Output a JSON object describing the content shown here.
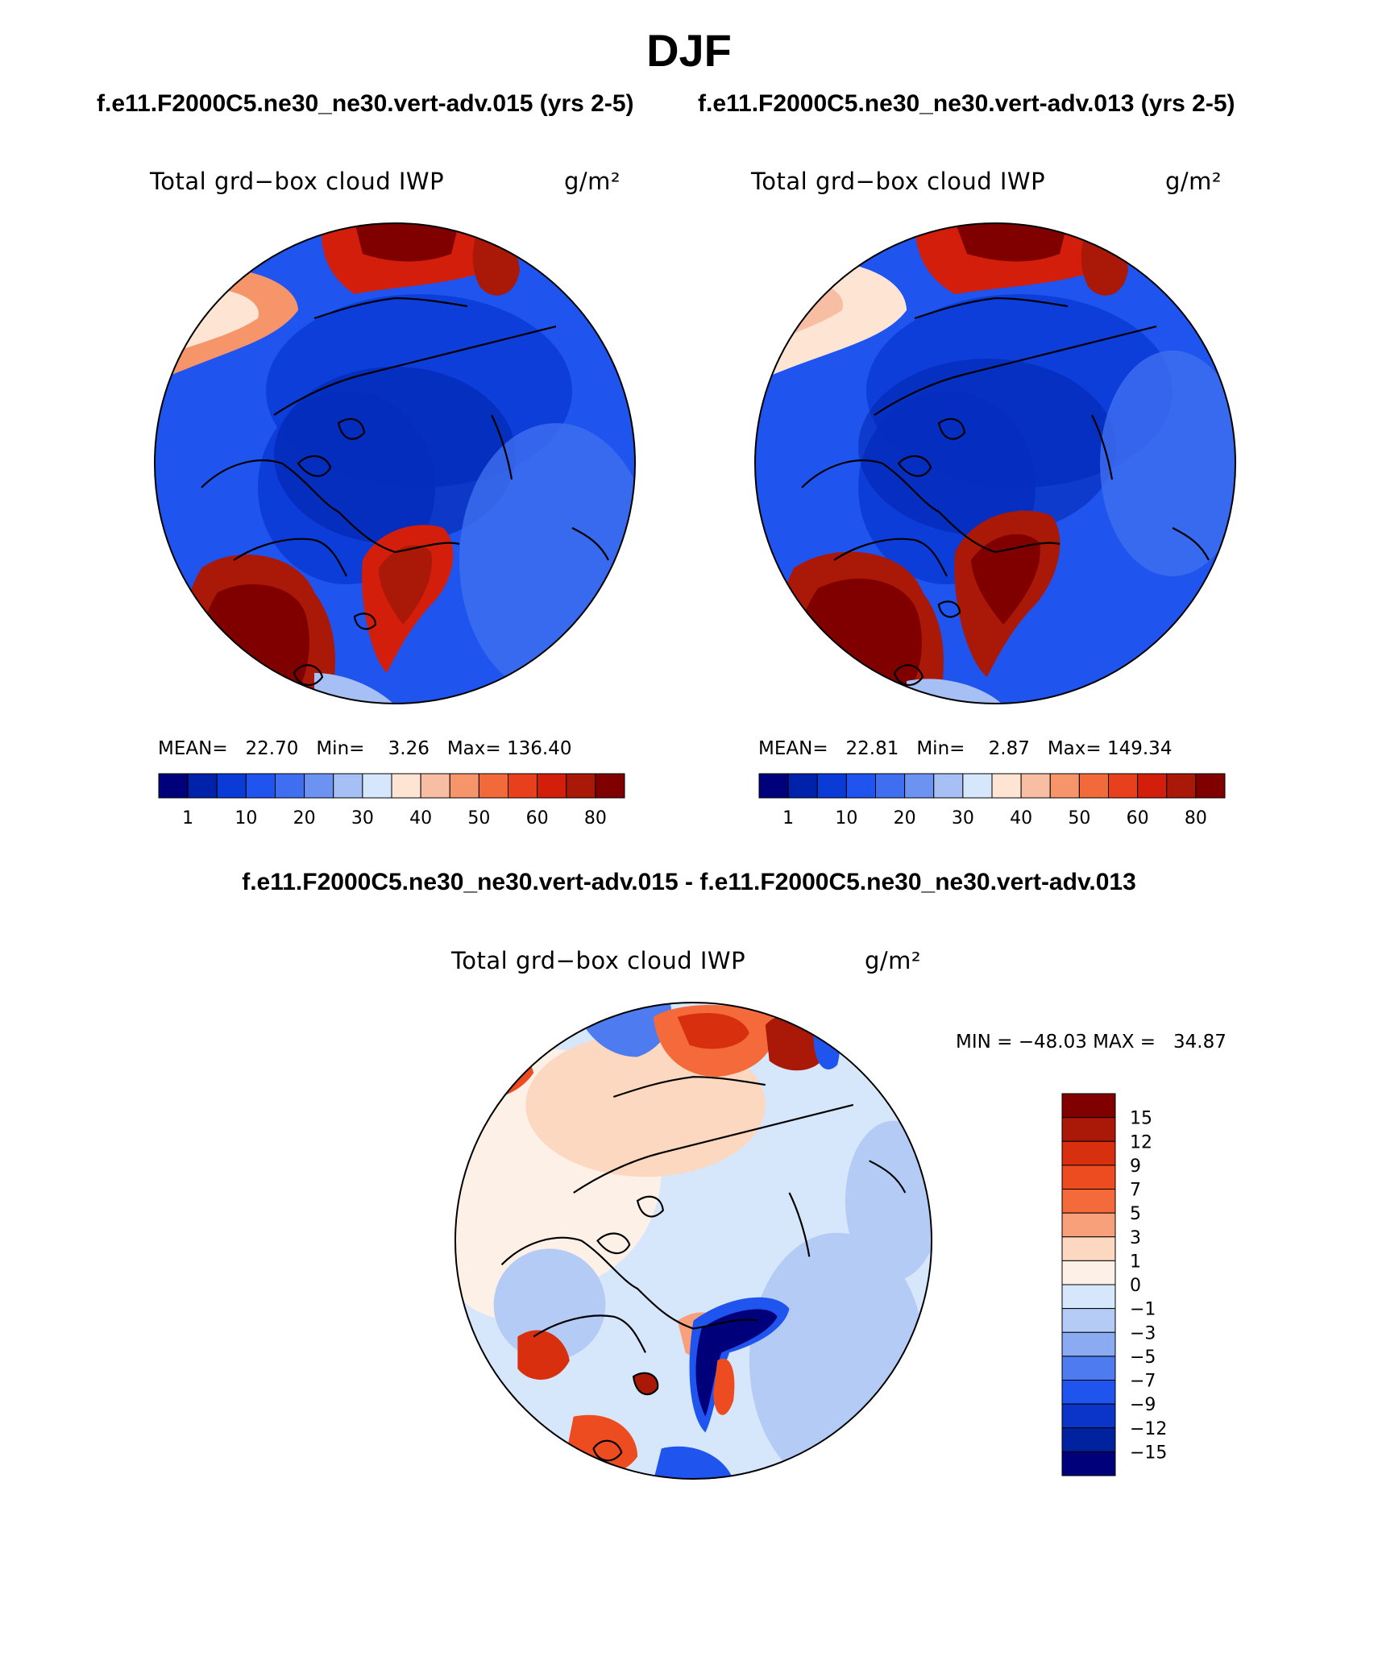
{
  "season": "DJF",
  "panels": [
    {
      "case": "f.e11.F2000C5.ne30_ne30.vert-adv.015 (yrs 2-5)",
      "variable": "Total grd−box cloud IWP",
      "units": "g/m²",
      "stats": {
        "mean_label": "MEAN=",
        "mean": "22.70",
        "min_label": "Min=",
        "min": "3.26",
        "max_label": "Max=",
        "max": "136.40"
      }
    },
    {
      "case": "f.e11.F2000C5.ne30_ne30.vert-adv.013 (yrs 2-5)",
      "variable": "Total grd−box cloud IWP",
      "units": "g/m²",
      "stats": {
        "mean_label": "MEAN=",
        "mean": "22.81",
        "min_label": "Min=",
        "min": "2.87",
        "max_label": "Max=",
        "max": "149.34"
      }
    }
  ],
  "difference": {
    "title": "f.e11.F2000C5.ne30_ne30.vert-adv.015 - f.e11.F2000C5.ne30_ne30.vert-adv.013",
    "variable": "Total grd−box cloud IWP",
    "units": "g/m²",
    "minmax": "MIN = −48.03 MAX =   34.87"
  },
  "chart_data": [
    {
      "type": "heatmap",
      "projection": "north-polar-stereographic",
      "field": "Total grd-box cloud IWP",
      "units": "g/m2",
      "colorbar": {
        "orientation": "horizontal",
        "tick_labels": [
          "1",
          "10",
          "20",
          "30",
          "40",
          "50",
          "60",
          "80"
        ],
        "colors": [
          "#00007a",
          "#0022aa",
          "#0a3bd6",
          "#1f55ee",
          "#3f6ff0",
          "#6d93f2",
          "#a6bff5",
          "#d6e6fb",
          "#fde4d3",
          "#f7bea3",
          "#f6946a",
          "#f26a3a",
          "#e8401c",
          "#d21e0a",
          "#aa1808",
          "#800000"
        ]
      },
      "mean": 22.7,
      "min": 3.26,
      "max": 136.4
    },
    {
      "type": "heatmap",
      "projection": "north-polar-stereographic",
      "field": "Total grd-box cloud IWP",
      "units": "g/m2",
      "colorbar": {
        "orientation": "horizontal",
        "tick_labels": [
          "1",
          "10",
          "20",
          "30",
          "40",
          "50",
          "60",
          "80"
        ],
        "colors": [
          "#00007a",
          "#0022aa",
          "#0a3bd6",
          "#1f55ee",
          "#3f6ff0",
          "#6d93f2",
          "#a6bff5",
          "#d6e6fb",
          "#fde4d3",
          "#f7bea3",
          "#f6946a",
          "#f26a3a",
          "#e8401c",
          "#d21e0a",
          "#aa1808",
          "#800000"
        ]
      },
      "mean": 22.81,
      "min": 2.87,
      "max": 149.34
    },
    {
      "type": "heatmap",
      "projection": "north-polar-stereographic",
      "field": "Total grd-box cloud IWP difference",
      "units": "g/m2",
      "colorbar": {
        "orientation": "vertical",
        "tick_labels": [
          "15",
          "12",
          "9",
          "7",
          "5",
          "3",
          "1",
          "0",
          "−1",
          "−3",
          "−5",
          "−7",
          "−9",
          "−12",
          "−15"
        ],
        "colors": [
          "#800000",
          "#aa1808",
          "#d8300e",
          "#ec4c1f",
          "#f46a3a",
          "#f7a07a",
          "#fcd8c0",
          "#fdf0e6",
          "#d6e6fb",
          "#b4ccf5",
          "#8aaaf2",
          "#4e7cf0",
          "#1f55ee",
          "#0a35c8",
          "#00229e",
          "#00007a"
        ]
      },
      "min": -48.03,
      "max": 34.87
    }
  ]
}
